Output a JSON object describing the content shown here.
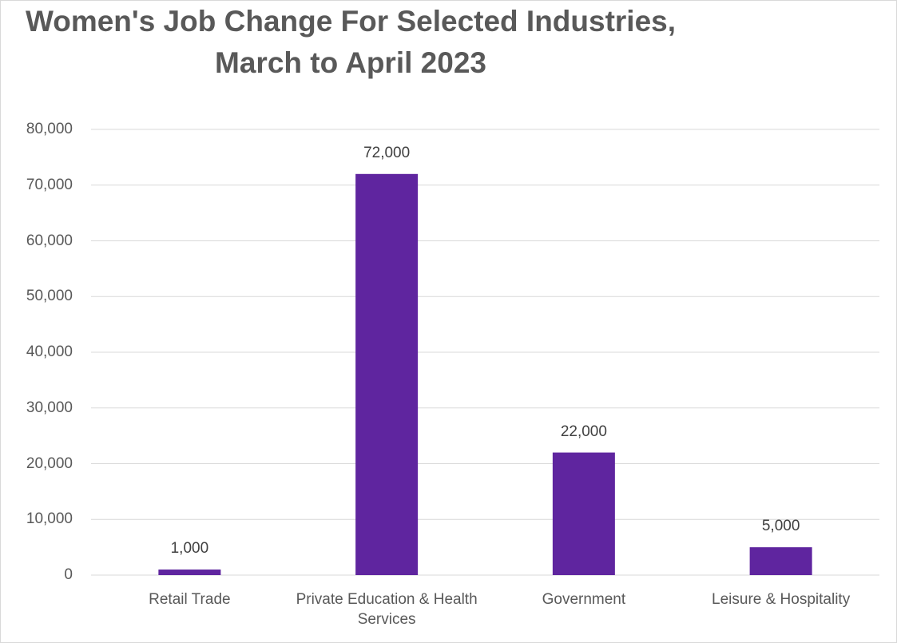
{
  "chart_data": {
    "type": "bar",
    "title": "Women's Job Change For Selected Industries, March to April 2023",
    "categories": [
      "Retail Trade",
      "Private Education & Health Services",
      "Government",
      "Leisure & Hospitality"
    ],
    "values": [
      1000,
      72000,
      22000,
      5000
    ],
    "value_labels": [
      "1,000",
      "72,000",
      "22,000",
      "5,000"
    ],
    "color": "#5f259f",
    "ylim": [
      0,
      80000
    ],
    "yticks": [
      0,
      {
        "value": 10000,
        "label": "10,000"
      },
      {
        "value": 20000,
        "label": "20,000"
      },
      {
        "value": 30000,
        "label": "30,000"
      },
      {
        "value": 40000,
        "label": "40,000"
      },
      {
        "value": 50000,
        "label": "50,000"
      },
      {
        "value": 60000,
        "label": "60,000"
      },
      {
        "value": 70000,
        "label": "70,000"
      },
      {
        "value": 80000,
        "label": "80,000"
      }
    ],
    "grid": true
  }
}
